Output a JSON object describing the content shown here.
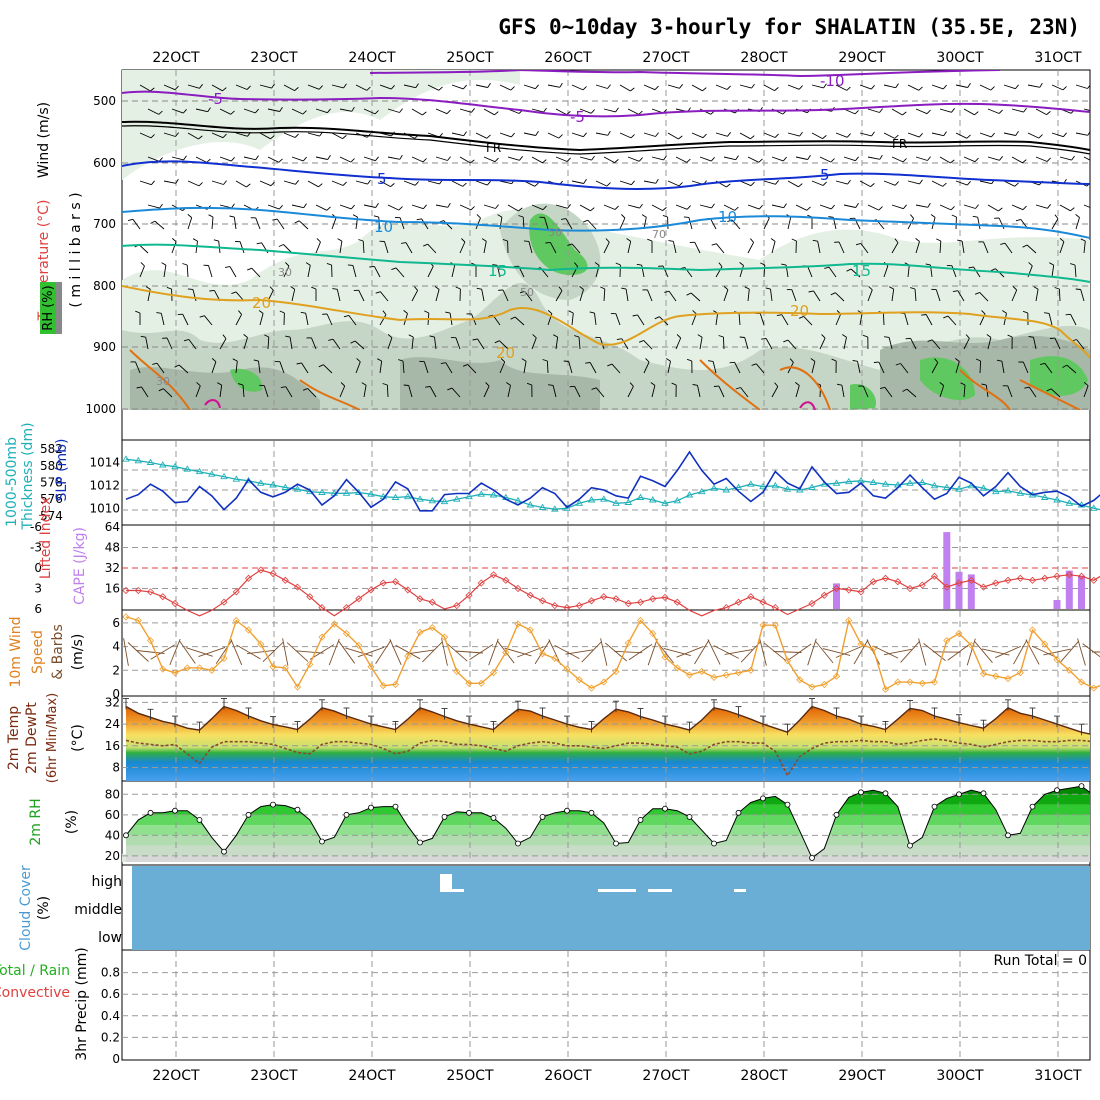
{
  "title": "GFS 0~10day 3-hourly for SHALATIN (35.5E, 23N)",
  "x_labels": [
    "22OCT",
    "23OCT",
    "24OCT",
    "25OCT",
    "26OCT",
    "27OCT",
    "28OCT",
    "29OCT",
    "30OCT",
    "31OCT"
  ],
  "colors": {
    "purple": "#8a1cc0",
    "black": "#000000",
    "blue": "#1030d0",
    "lightblue": "#1a8ad8",
    "teal": "#10b890",
    "orange": "#e0a020",
    "darkorange": "#e07010",
    "magenta": "#d01090",
    "slp": "#1030c0",
    "thickness": "#20b0b8",
    "lifted": "#e04040",
    "cape": "#c080f0",
    "wind": "#f0a030",
    "cloud": "#6aaed6",
    "rh_fill": "#20d020"
  },
  "panels": {
    "upper": {
      "axis_label_wind": "Wind (m/s)",
      "axis_label_temp": "Temperature (°C)",
      "axis_label_mb": "( m i l l i b a r s )",
      "axis_label_rh": "RH (%)",
      "pressure_ticks": [
        "500",
        "600",
        "700",
        "800",
        "900",
        "1000"
      ],
      "contour_labels": {
        "m10": "-10",
        "m5a": "-5",
        "m5b": "-5",
        "fr1": "FR",
        "fr2": "FR",
        "p5a": "5",
        "p5b": "5",
        "p10a": "10",
        "p10b": "10",
        "p15a": "15",
        "p15b": "15",
        "p20a": "20",
        "p20b": "20",
        "p20c": "20",
        "rh30": "30",
        "rh50a": "50",
        "rh50b": "50",
        "rh70": "70",
        "rh30b": "30"
      }
    },
    "slp": {
      "label_left": "1000-500mb",
      "label_left2": "Thickness (dm)",
      "label_right": "SLP (mb)",
      "left_ticks": [
        "574",
        "576",
        "578",
        "580",
        "582"
      ],
      "right_ticks": [
        "1010",
        "1012",
        "1014"
      ]
    },
    "cape": {
      "label_left": "Lifted Index",
      "label_right": "CAPE (J/kg)",
      "li_ticks": [
        "-6",
        "-3",
        "0",
        "3",
        "6"
      ],
      "cape_ticks": [
        "16",
        "32",
        "48",
        "64"
      ]
    },
    "wind": {
      "label1": "10m Wind",
      "label2": "Speed",
      "label3": "& Barbs",
      "unit": "(m/s)",
      "ticks": [
        "0",
        "2",
        "4",
        "6"
      ]
    },
    "temp": {
      "label1": "2m Temp",
      "label2": "2m DewPt",
      "label3": "(6hr Min/Max)",
      "unit": "(°C)",
      "ticks": [
        "8",
        "16",
        "24",
        "32"
      ]
    },
    "rh": {
      "label1": "2m RH",
      "unit": "(%)",
      "ticks": [
        "20",
        "40",
        "60",
        "80"
      ]
    },
    "cloud": {
      "label1": "Cloud Cover",
      "unit": "(%)",
      "levels": [
        "high",
        "middle",
        "low"
      ]
    },
    "precip": {
      "label1": "Total / Rain",
      "label2": "Convective",
      "label3": "3hr Precip (mm)",
      "run_total": "Run Total = 0",
      "ticks": [
        "0",
        "0.2",
        "0.4",
        "0.6",
        "0.8"
      ]
    }
  },
  "chart_data": [
    {
      "type": "line",
      "title": "1000-500mb Thickness (dm) / SLP (mb)",
      "n_steps": 81,
      "series": [
        {
          "name": "SLP (mb)",
          "axis": "right",
          "ylim": [
            1009,
            1015.5
          ],
          "values": [
            1010.8,
            1011.2,
            1012.1,
            1011.5,
            1010.5,
            1010.6,
            1011.9,
            1011.1,
            1009.9,
            1010.9,
            1012.5,
            1011.4,
            1011.0,
            1011.4,
            1012.1,
            1011.6,
            1010.3,
            1011.1,
            1012.5,
            1011.4,
            1010.1,
            1010.8,
            1012.3,
            1011.7,
            1009.8,
            1009.8,
            1011.2,
            1011.3,
            1011.3,
            1012.2,
            1011.6,
            1010.8,
            1010.3,
            1010.9,
            1011.8,
            1011.3,
            1010.1,
            1010.8,
            1011.8,
            1011.6,
            1011.1,
            1010.9,
            1012.8,
            1012.4,
            1011.9,
            1013.3,
            1014.9,
            1013.3,
            1012.1,
            1012.6,
            1011.5,
            1010.6,
            1011.4,
            1013.2,
            1012.2,
            1011.7,
            1013.6,
            1012.3,
            1011.3,
            1011.4,
            1012.2,
            1011.1,
            1010.9,
            1011.8,
            1012.9,
            1011.8,
            1010.8,
            1011.3,
            1012.7,
            1012.2,
            1011.1,
            1011.9,
            1013.1,
            1011.9,
            1011.2,
            1011.4,
            1011.5,
            1011.0,
            1010.2,
            1010.7,
            1011.6
          ]
        },
        {
          "name": "1000-500mb Thickness (dm)",
          "axis": "left",
          "ylim": [
            573.5,
            582.5
          ],
          "values": [
            580.8,
            580.6,
            580.4,
            580.1,
            579.9,
            579.6,
            579.3,
            579.0,
            578.7,
            578.4,
            578.2,
            577.9,
            577.7,
            577.4,
            577.2,
            576.9,
            576.8,
            576.7,
            576.7,
            576.8,
            576.6,
            576.3,
            576.2,
            576.3,
            576.0,
            575.8,
            575.7,
            576.0,
            576.3,
            576.6,
            576.5,
            576.2,
            575.8,
            575.3,
            575.0,
            574.8,
            574.9,
            575.5,
            575.9,
            576.0,
            575.5,
            575.6,
            576.2,
            575.9,
            575.5,
            575.8,
            576.5,
            576.9,
            577.3,
            577.1,
            577.4,
            577.8,
            577.5,
            577.6,
            577.2,
            577.1,
            577.4,
            577.8,
            577.9,
            578.1,
            578.2,
            578.0,
            577.8,
            577.7,
            577.9,
            578.0,
            577.6,
            577.4,
            577.2,
            577.6,
            577.3,
            576.9,
            577.0,
            576.7,
            576.5,
            576.2,
            575.9,
            575.5,
            575.3,
            574.9,
            574.6
          ]
        }
      ],
      "xlabel": "",
      "ylabel": ""
    },
    {
      "type": "bar+line",
      "title": "Lifted Index / CAPE (J/kg)",
      "n_steps": 81,
      "series": [
        {
          "name": "Lifted Index",
          "ylim": [
            6,
            -6
          ],
          "values": [
            3.3,
            3.3,
            3.5,
            4.2,
            5.2,
            6.2,
            7.0,
            6.2,
            5.0,
            3.5,
            1.5,
            0.3,
            0.8,
            1.8,
            2.8,
            4.2,
            5.8,
            7.0,
            5.8,
            4.5,
            3.2,
            2.2,
            2.0,
            3.2,
            4.5,
            5.0,
            6.0,
            5.5,
            4.0,
            2.2,
            1.0,
            1.8,
            3.0,
            4.0,
            4.8,
            5.5,
            5.8,
            5.5,
            4.8,
            4.2,
            4.5,
            5.2,
            5.0,
            4.5,
            4.3,
            5.0,
            6.2,
            7.0,
            6.2,
            5.8,
            5.0,
            4.2,
            5.0,
            5.8,
            6.8,
            6.0,
            5.2,
            4.0,
            3.0,
            3.2,
            3.5,
            2.0,
            1.5,
            2.0,
            3.0,
            2.5,
            1.2,
            2.8,
            2.2,
            1.8,
            2.8,
            2.2,
            1.8,
            1.5,
            1.8,
            1.5,
            1.2,
            1.0,
            1.2,
            1.8,
            0.7
          ]
        },
        {
          "name": "CAPE (J/kg)",
          "ylim": [
            0,
            64
          ],
          "values": [
            0,
            0,
            0,
            0,
            0,
            0,
            0,
            0,
            0,
            0,
            0,
            0,
            0,
            0,
            0,
            0,
            0,
            0,
            0,
            0,
            0,
            0,
            0,
            0,
            0,
            0,
            0,
            0,
            0,
            0,
            0,
            0,
            0,
            0,
            0,
            0,
            0,
            0,
            0,
            0,
            0,
            0,
            0,
            0,
            0,
            0,
            0,
            0,
            0,
            0,
            0,
            0,
            0,
            0,
            0,
            0,
            0,
            0,
            20,
            0,
            0,
            0,
            0,
            0,
            0,
            0,
            0,
            60,
            29,
            27,
            0,
            0,
            0,
            0,
            0,
            0,
            7,
            30,
            26,
            0,
            0
          ]
        }
      ],
      "xlabel": "",
      "ylabel": ""
    },
    {
      "type": "line",
      "title": "10m Wind Speed & Barbs (m/s)",
      "n_steps": 81,
      "ylim": [
        0,
        7
      ],
      "series": [
        {
          "name": "10m Wind Speed (m/s)",
          "values": [
            6.5,
            6.2,
            4.5,
            2.1,
            1.8,
            2.2,
            2.2,
            2.0,
            3.0,
            6.2,
            5.4,
            4.2,
            2.3,
            2.2,
            0.6,
            2.5,
            4.8,
            5.9,
            5.1,
            4.1,
            2.3,
            0.7,
            0.8,
            3.2,
            5.2,
            5.6,
            4.8,
            1.9,
            0.9,
            0.9,
            1.8,
            3.5,
            5.9,
            5.4,
            3.4,
            3.0,
            2.1,
            1.2,
            0.5,
            1.0,
            1.9,
            4.3,
            6.2,
            5.1,
            3.1,
            2.2,
            1.6,
            1.9,
            1.4,
            1.6,
            1.8,
            2.0,
            5.8,
            5.8,
            2.8,
            1.2,
            0.6,
            0.8,
            1.5,
            6.2,
            4.2,
            3.8,
            0.4,
            1.0,
            1.0,
            0.9,
            1.0,
            4.5,
            5.1,
            4.1,
            1.7,
            1.5,
            1.3,
            1.8,
            5.4,
            4.2,
            2.9,
            2.0,
            1.0,
            0.5,
            0.9
          ]
        }
      ],
      "xlabel": "",
      "ylabel": "(m/s)"
    },
    {
      "type": "area+line",
      "title": "2m Temp / 2m DewPt (6hr Min/Max)",
      "n_steps": 81,
      "ylim": [
        3,
        34
      ],
      "series": [
        {
          "name": "2m Temp (°C)",
          "values": [
            30.5,
            28.0,
            26.5,
            25.0,
            24.0,
            22.5,
            21.8,
            26.0,
            30.5,
            29.0,
            27.0,
            25.2,
            23.8,
            23.0,
            22.0,
            25.8,
            30.0,
            28.8,
            27.0,
            25.5,
            24.0,
            23.0,
            22.0,
            25.8,
            30.0,
            28.5,
            26.8,
            25.2,
            24.0,
            23.0,
            22.0,
            26.0,
            29.5,
            28.8,
            27.0,
            25.5,
            24.0,
            22.8,
            22.0,
            26.0,
            29.5,
            28.5,
            26.8,
            25.5,
            24.0,
            23.0,
            21.8,
            25.5,
            30.0,
            29.0,
            27.5,
            25.8,
            24.0,
            22.5,
            21.0,
            25.5,
            30.5,
            29.0,
            27.0,
            25.8,
            24.0,
            23.2,
            22.0,
            25.8,
            29.8,
            29.0,
            27.0,
            25.8,
            24.5,
            23.5,
            22.5,
            26.0,
            30.0,
            28.0,
            27.0,
            25.5,
            24.0,
            22.5,
            21.0,
            20.0,
            25.0
          ]
        },
        {
          "name": "2m DewPt (°C)",
          "values": [
            18.0,
            17.0,
            16.5,
            16.0,
            16.5,
            13.0,
            9.5,
            15.5,
            17.5,
            17.5,
            17.5,
            17.0,
            16.5,
            15.0,
            13.5,
            13.0,
            16.5,
            17.5,
            17.5,
            17.0,
            16.5,
            15.0,
            13.0,
            14.0,
            17.0,
            18.0,
            17.5,
            16.5,
            16.5,
            16.0,
            15.0,
            14.0,
            16.0,
            17.0,
            17.5,
            17.0,
            16.0,
            16.0,
            15.5,
            15.0,
            16.0,
            17.0,
            17.0,
            16.5,
            16.0,
            15.5,
            13.0,
            14.0,
            16.5,
            17.5,
            17.5,
            17.0,
            17.0,
            14.0,
            5.0,
            12.0,
            15.0,
            17.0,
            17.5,
            17.5,
            18.0,
            17.5,
            17.5,
            16.5,
            17.0,
            18.0,
            18.5,
            18.0,
            17.0,
            16.5,
            15.5,
            16.5,
            17.5,
            18.0,
            18.0,
            17.5,
            17.5,
            18.0,
            18.0,
            17.5,
            17.5
          ]
        }
      ],
      "xlabel": "",
      "ylabel": "(°C)"
    },
    {
      "type": "area",
      "title": "2m RH (%)",
      "n_steps": 81,
      "ylim": [
        14,
        92
      ],
      "series": [
        {
          "name": "2m RH (%)",
          "values": [
            40,
            55,
            62,
            62,
            64,
            64,
            55,
            38,
            24,
            40,
            60,
            68,
            70,
            69,
            65,
            55,
            34,
            38,
            60,
            62,
            67,
            68,
            68,
            49,
            33,
            37,
            58,
            63,
            62,
            62,
            57,
            47,
            32,
            38,
            58,
            62,
            64,
            64,
            62,
            52,
            32,
            33,
            55,
            66,
            66,
            64,
            58,
            45,
            32,
            35,
            62,
            72,
            76,
            78,
            70,
            44,
            18,
            27,
            60,
            77,
            82,
            84,
            81,
            68,
            30,
            38,
            68,
            76,
            80,
            84,
            81,
            65,
            40,
            42,
            68,
            80,
            84,
            86,
            88,
            79,
            66
          ]
        }
      ],
      "xlabel": "",
      "ylabel": "(%)"
    },
    {
      "type": "bar",
      "title": "3hr Precip (mm)",
      "ylim": [
        0,
        1
      ],
      "categories": [
        "22OCT",
        "23OCT",
        "24OCT",
        "25OCT",
        "26OCT",
        "27OCT",
        "28OCT",
        "29OCT",
        "30OCT",
        "31OCT"
      ],
      "values": [
        0,
        0,
        0,
        0,
        0,
        0,
        0,
        0,
        0,
        0
      ],
      "note": "Run Total = 0"
    }
  ]
}
